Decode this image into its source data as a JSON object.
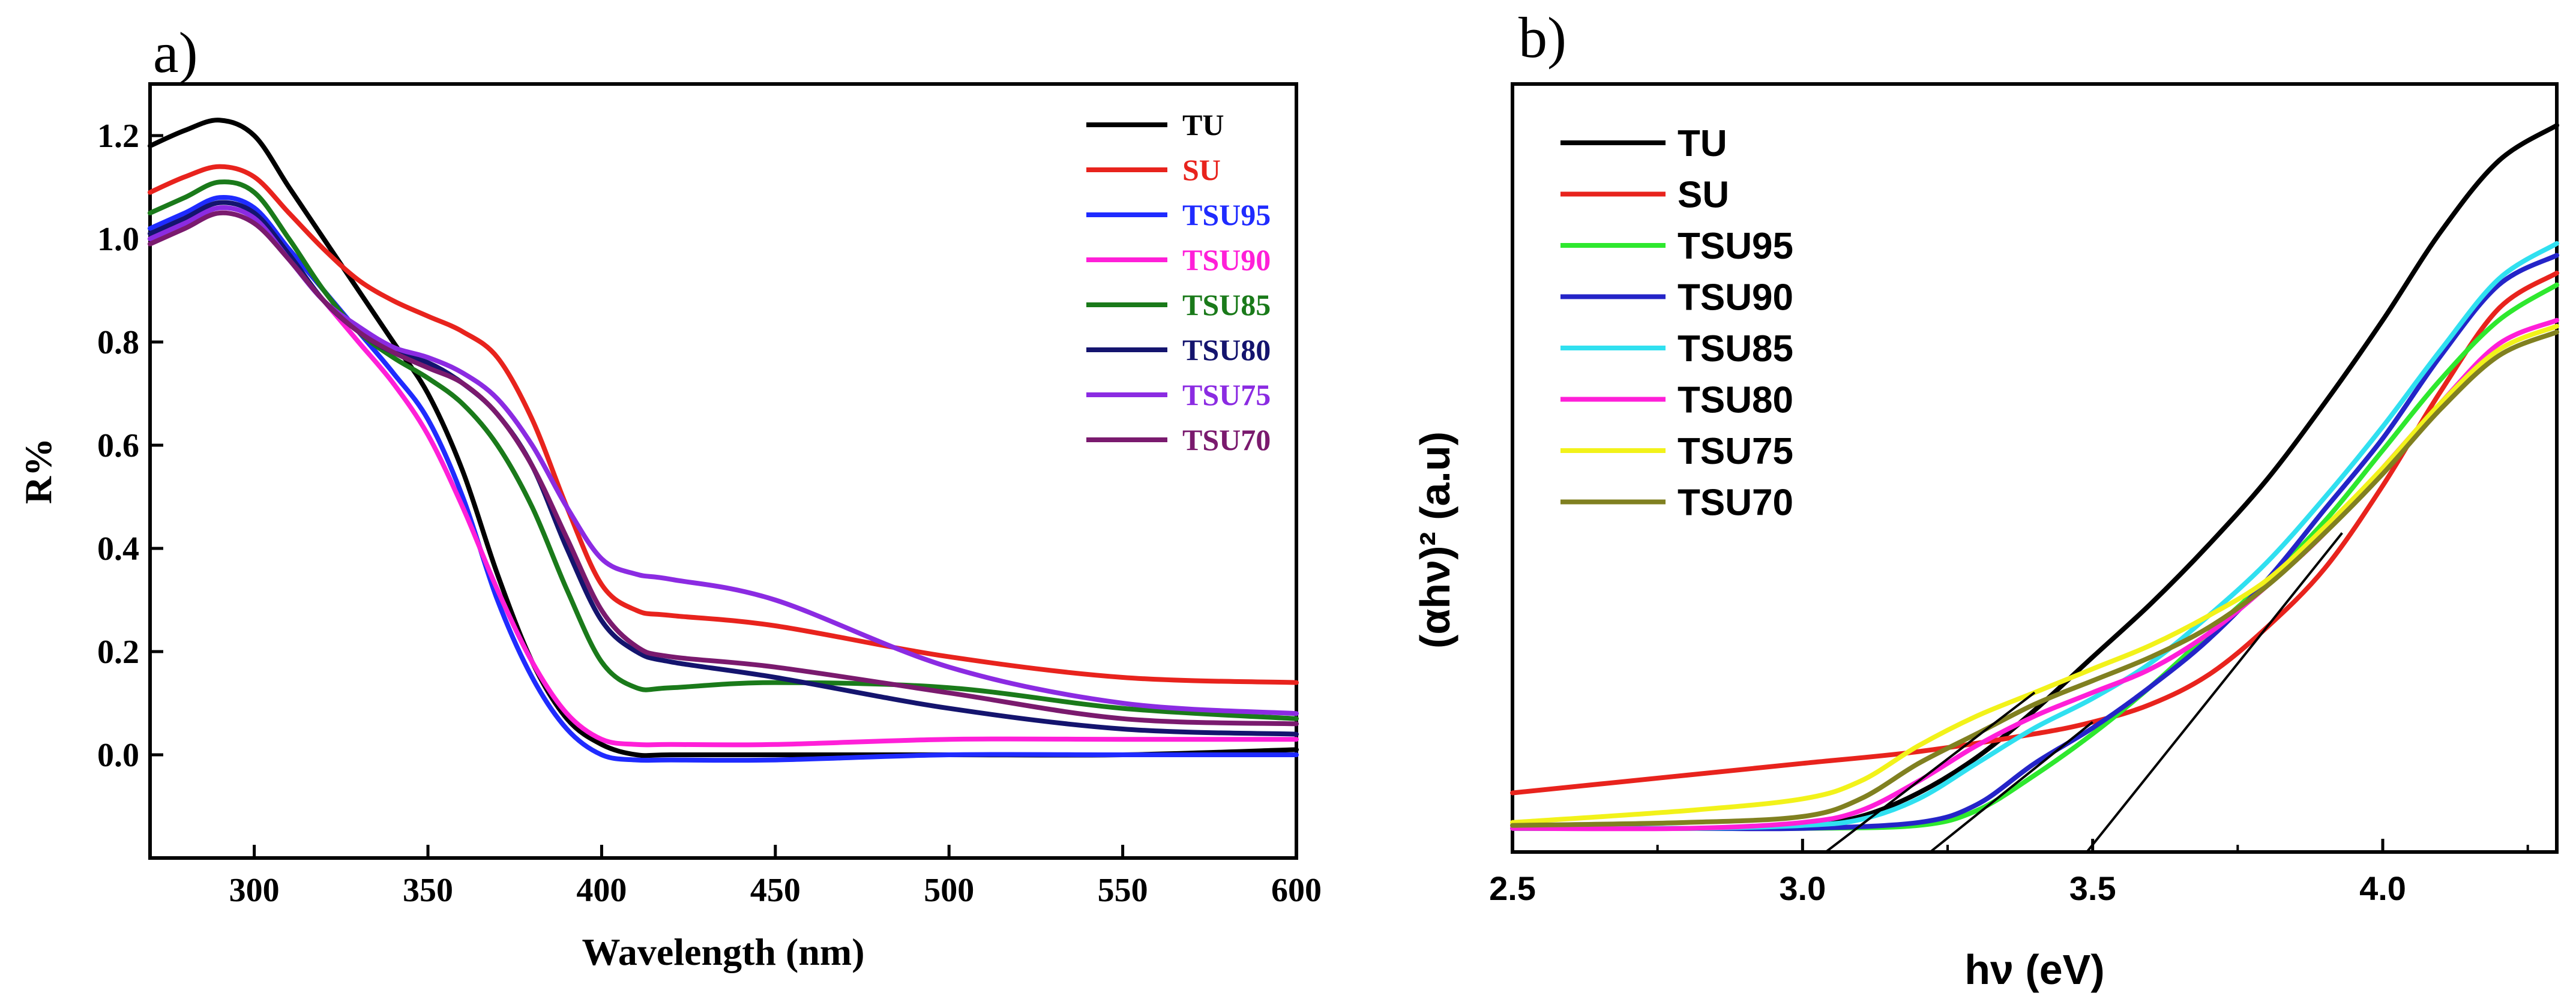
{
  "chart_data": [
    {
      "id": "a",
      "type": "line",
      "panel_label": "a)",
      "title": "",
      "xlabel": "Wavelength (nm)",
      "ylabel": "R%",
      "xlim": [
        270,
        600
      ],
      "ylim": [
        -0.2,
        1.3
      ],
      "xticks": [
        300,
        350,
        400,
        450,
        500,
        550,
        600
      ],
      "yticks": [
        0.0,
        0.2,
        0.4,
        0.6,
        0.8,
        1.0,
        1.2
      ],
      "xtick_labels": [
        "300",
        "350",
        "400",
        "450",
        "500",
        "550",
        "600"
      ],
      "ytick_labels": [
        "0.0",
        "0.2",
        "0.4",
        "0.6",
        "0.8",
        "1.0",
        "1.2"
      ],
      "grid": false,
      "legend_position": "top-right",
      "series": [
        {
          "name": "TU",
          "color": "#000000",
          "x": [
            270,
            280,
            290,
            300,
            310,
            320,
            330,
            340,
            350,
            360,
            370,
            380,
            390,
            400,
            410,
            420,
            450,
            500,
            550,
            600
          ],
          "y": [
            1.18,
            1.21,
            1.23,
            1.2,
            1.1,
            1.0,
            0.9,
            0.8,
            0.7,
            0.55,
            0.35,
            0.18,
            0.07,
            0.02,
            0.0,
            0.0,
            0.0,
            0.0,
            0.0,
            0.01
          ]
        },
        {
          "name": "SU",
          "color": "#e8231d",
          "x": [
            270,
            280,
            290,
            300,
            310,
            320,
            330,
            340,
            350,
            360,
            370,
            380,
            390,
            400,
            410,
            420,
            450,
            500,
            550,
            600
          ],
          "y": [
            1.09,
            1.12,
            1.14,
            1.12,
            1.05,
            0.98,
            0.92,
            0.88,
            0.85,
            0.82,
            0.77,
            0.65,
            0.48,
            0.33,
            0.28,
            0.27,
            0.25,
            0.19,
            0.15,
            0.14
          ]
        },
        {
          "name": "TSU95",
          "color": "#1f2bff",
          "x": [
            270,
            280,
            290,
            300,
            310,
            320,
            330,
            340,
            350,
            360,
            370,
            380,
            390,
            400,
            410,
            420,
            450,
            500,
            550,
            600
          ],
          "y": [
            1.02,
            1.05,
            1.08,
            1.06,
            0.98,
            0.9,
            0.82,
            0.74,
            0.65,
            0.5,
            0.3,
            0.15,
            0.05,
            0.0,
            -0.01,
            -0.01,
            -0.01,
            0.0,
            0.0,
            0.0
          ]
        },
        {
          "name": "TSU90",
          "color": "#ff1fd8",
          "x": [
            270,
            280,
            290,
            300,
            310,
            320,
            330,
            340,
            350,
            360,
            370,
            380,
            390,
            400,
            410,
            420,
            450,
            500,
            550,
            600
          ],
          "y": [
            1.0,
            1.03,
            1.06,
            1.04,
            0.96,
            0.88,
            0.8,
            0.72,
            0.62,
            0.48,
            0.32,
            0.18,
            0.08,
            0.03,
            0.02,
            0.02,
            0.02,
            0.03,
            0.03,
            0.03
          ]
        },
        {
          "name": "TSU85",
          "color": "#1a7a1a",
          "x": [
            270,
            280,
            290,
            300,
            310,
            320,
            330,
            340,
            350,
            360,
            370,
            380,
            390,
            400,
            410,
            420,
            450,
            500,
            550,
            600
          ],
          "y": [
            1.05,
            1.08,
            1.11,
            1.09,
            1.0,
            0.9,
            0.82,
            0.77,
            0.73,
            0.68,
            0.6,
            0.48,
            0.32,
            0.18,
            0.13,
            0.13,
            0.14,
            0.13,
            0.09,
            0.07
          ]
        },
        {
          "name": "TSU80",
          "color": "#14146e",
          "x": [
            270,
            280,
            290,
            300,
            310,
            320,
            330,
            340,
            350,
            360,
            370,
            380,
            390,
            400,
            410,
            420,
            450,
            500,
            550,
            600
          ],
          "y": [
            1.01,
            1.04,
            1.07,
            1.05,
            0.97,
            0.88,
            0.82,
            0.78,
            0.76,
            0.72,
            0.66,
            0.56,
            0.4,
            0.26,
            0.2,
            0.18,
            0.15,
            0.09,
            0.05,
            0.04
          ]
        },
        {
          "name": "TSU75",
          "color": "#8b2be2",
          "x": [
            270,
            280,
            290,
            300,
            310,
            320,
            330,
            340,
            350,
            360,
            370,
            380,
            390,
            400,
            410,
            420,
            450,
            500,
            550,
            600
          ],
          "y": [
            1.0,
            1.03,
            1.06,
            1.04,
            0.96,
            0.88,
            0.83,
            0.79,
            0.77,
            0.74,
            0.69,
            0.6,
            0.48,
            0.38,
            0.35,
            0.34,
            0.3,
            0.17,
            0.1,
            0.08
          ]
        },
        {
          "name": "TSU70",
          "color": "#7a1a6e",
          "x": [
            270,
            280,
            290,
            300,
            310,
            320,
            330,
            340,
            350,
            360,
            370,
            380,
            390,
            400,
            410,
            420,
            450,
            500,
            550,
            600
          ],
          "y": [
            0.99,
            1.02,
            1.05,
            1.03,
            0.96,
            0.88,
            0.82,
            0.78,
            0.75,
            0.72,
            0.66,
            0.56,
            0.42,
            0.28,
            0.21,
            0.19,
            0.17,
            0.12,
            0.07,
            0.06
          ]
        }
      ]
    },
    {
      "id": "b",
      "type": "line",
      "panel_label": "b)",
      "title": "",
      "xlabel": "hν (eV)",
      "ylabel": "(αhν)² (a.u)",
      "xlim": [
        2.5,
        4.3
      ],
      "ylim": [
        0,
        1.3
      ],
      "xticks": [
        2.5,
        3.0,
        3.5,
        4.0
      ],
      "xtick_labels": [
        "2.5",
        "3.0",
        "3.5",
        "4.0"
      ],
      "yticks": [],
      "ytick_labels": [],
      "grid": false,
      "legend_position": "top-left",
      "series": [
        {
          "name": "TU",
          "color": "#000000",
          "x": [
            2.5,
            2.8,
            3.0,
            3.1,
            3.2,
            3.3,
            3.4,
            3.5,
            3.6,
            3.7,
            3.8,
            3.9,
            4.0,
            4.1,
            4.2,
            4.3
          ],
          "y": [
            0.04,
            0.04,
            0.045,
            0.06,
            0.1,
            0.16,
            0.24,
            0.33,
            0.42,
            0.52,
            0.63,
            0.76,
            0.9,
            1.05,
            1.17,
            1.23
          ]
        },
        {
          "name": "SU",
          "color": "#e8231d",
          "x": [
            2.5,
            2.8,
            3.0,
            3.2,
            3.4,
            3.5,
            3.6,
            3.7,
            3.8,
            3.9,
            4.0,
            4.1,
            4.2,
            4.3
          ],
          "y": [
            0.1,
            0.13,
            0.15,
            0.17,
            0.2,
            0.22,
            0.25,
            0.3,
            0.38,
            0.48,
            0.62,
            0.78,
            0.92,
            0.98
          ]
        },
        {
          "name": "TSU95",
          "color": "#2ee82e",
          "x": [
            2.5,
            2.8,
            3.0,
            3.2,
            3.3,
            3.4,
            3.5,
            3.6,
            3.7,
            3.8,
            3.9,
            4.0,
            4.1,
            4.2,
            4.3
          ],
          "y": [
            0.04,
            0.04,
            0.04,
            0.045,
            0.07,
            0.13,
            0.2,
            0.28,
            0.37,
            0.46,
            0.56,
            0.68,
            0.8,
            0.9,
            0.96
          ]
        },
        {
          "name": "TSU90",
          "color": "#2424c8",
          "x": [
            2.5,
            2.8,
            3.0,
            3.2,
            3.3,
            3.4,
            3.5,
            3.6,
            3.7,
            3.8,
            3.9,
            4.0,
            4.1,
            4.2,
            4.3
          ],
          "y": [
            0.04,
            0.04,
            0.04,
            0.05,
            0.08,
            0.15,
            0.21,
            0.28,
            0.36,
            0.46,
            0.58,
            0.7,
            0.84,
            0.96,
            1.01
          ]
        },
        {
          "name": "TSU85",
          "color": "#30e0f0",
          "x": [
            2.5,
            2.8,
            3.0,
            3.1,
            3.2,
            3.3,
            3.4,
            3.5,
            3.6,
            3.7,
            3.8,
            3.9,
            4.0,
            4.1,
            4.2,
            4.3
          ],
          "y": [
            0.04,
            0.04,
            0.045,
            0.055,
            0.09,
            0.15,
            0.21,
            0.26,
            0.32,
            0.4,
            0.49,
            0.6,
            0.72,
            0.85,
            0.97,
            1.03
          ]
        },
        {
          "name": "TSU80",
          "color": "#ff1fd8",
          "x": [
            2.5,
            2.8,
            3.0,
            3.1,
            3.2,
            3.3,
            3.4,
            3.5,
            3.6,
            3.7,
            3.8,
            3.9,
            4.0,
            4.1,
            4.2,
            4.3
          ],
          "y": [
            0.04,
            0.04,
            0.05,
            0.07,
            0.12,
            0.18,
            0.23,
            0.27,
            0.31,
            0.37,
            0.45,
            0.54,
            0.65,
            0.76,
            0.86,
            0.9
          ]
        },
        {
          "name": "TSU75",
          "color": "#f2f21a",
          "x": [
            2.5,
            2.8,
            3.0,
            3.1,
            3.2,
            3.3,
            3.4,
            3.5,
            3.6,
            3.7,
            3.8,
            3.9,
            4.0,
            4.1,
            4.2,
            4.3
          ],
          "y": [
            0.05,
            0.07,
            0.09,
            0.12,
            0.18,
            0.23,
            0.27,
            0.31,
            0.35,
            0.4,
            0.46,
            0.55,
            0.65,
            0.76,
            0.85,
            0.89
          ]
        },
        {
          "name": "TSU70",
          "color": "#808020",
          "x": [
            2.5,
            2.8,
            3.0,
            3.1,
            3.2,
            3.3,
            3.4,
            3.5,
            3.6,
            3.7,
            3.8,
            3.9,
            4.0,
            4.1,
            4.2,
            4.3
          ],
          "y": [
            0.045,
            0.05,
            0.06,
            0.09,
            0.15,
            0.2,
            0.25,
            0.29,
            0.33,
            0.38,
            0.45,
            0.54,
            0.64,
            0.75,
            0.84,
            0.88
          ]
        }
      ],
      "tangent_lines": [
        {
          "name": "tangent-1",
          "color": "#000000",
          "x": [
            3.04,
            3.4
          ],
          "y": [
            0.0,
            0.27
          ]
        },
        {
          "name": "tangent-2",
          "color": "#000000",
          "x": [
            3.22,
            3.5
          ],
          "y": [
            0.0,
            0.22
          ]
        },
        {
          "name": "tangent-3",
          "color": "#000000",
          "x": [
            3.49,
            3.93
          ],
          "y": [
            0.0,
            0.54
          ]
        }
      ]
    }
  ]
}
